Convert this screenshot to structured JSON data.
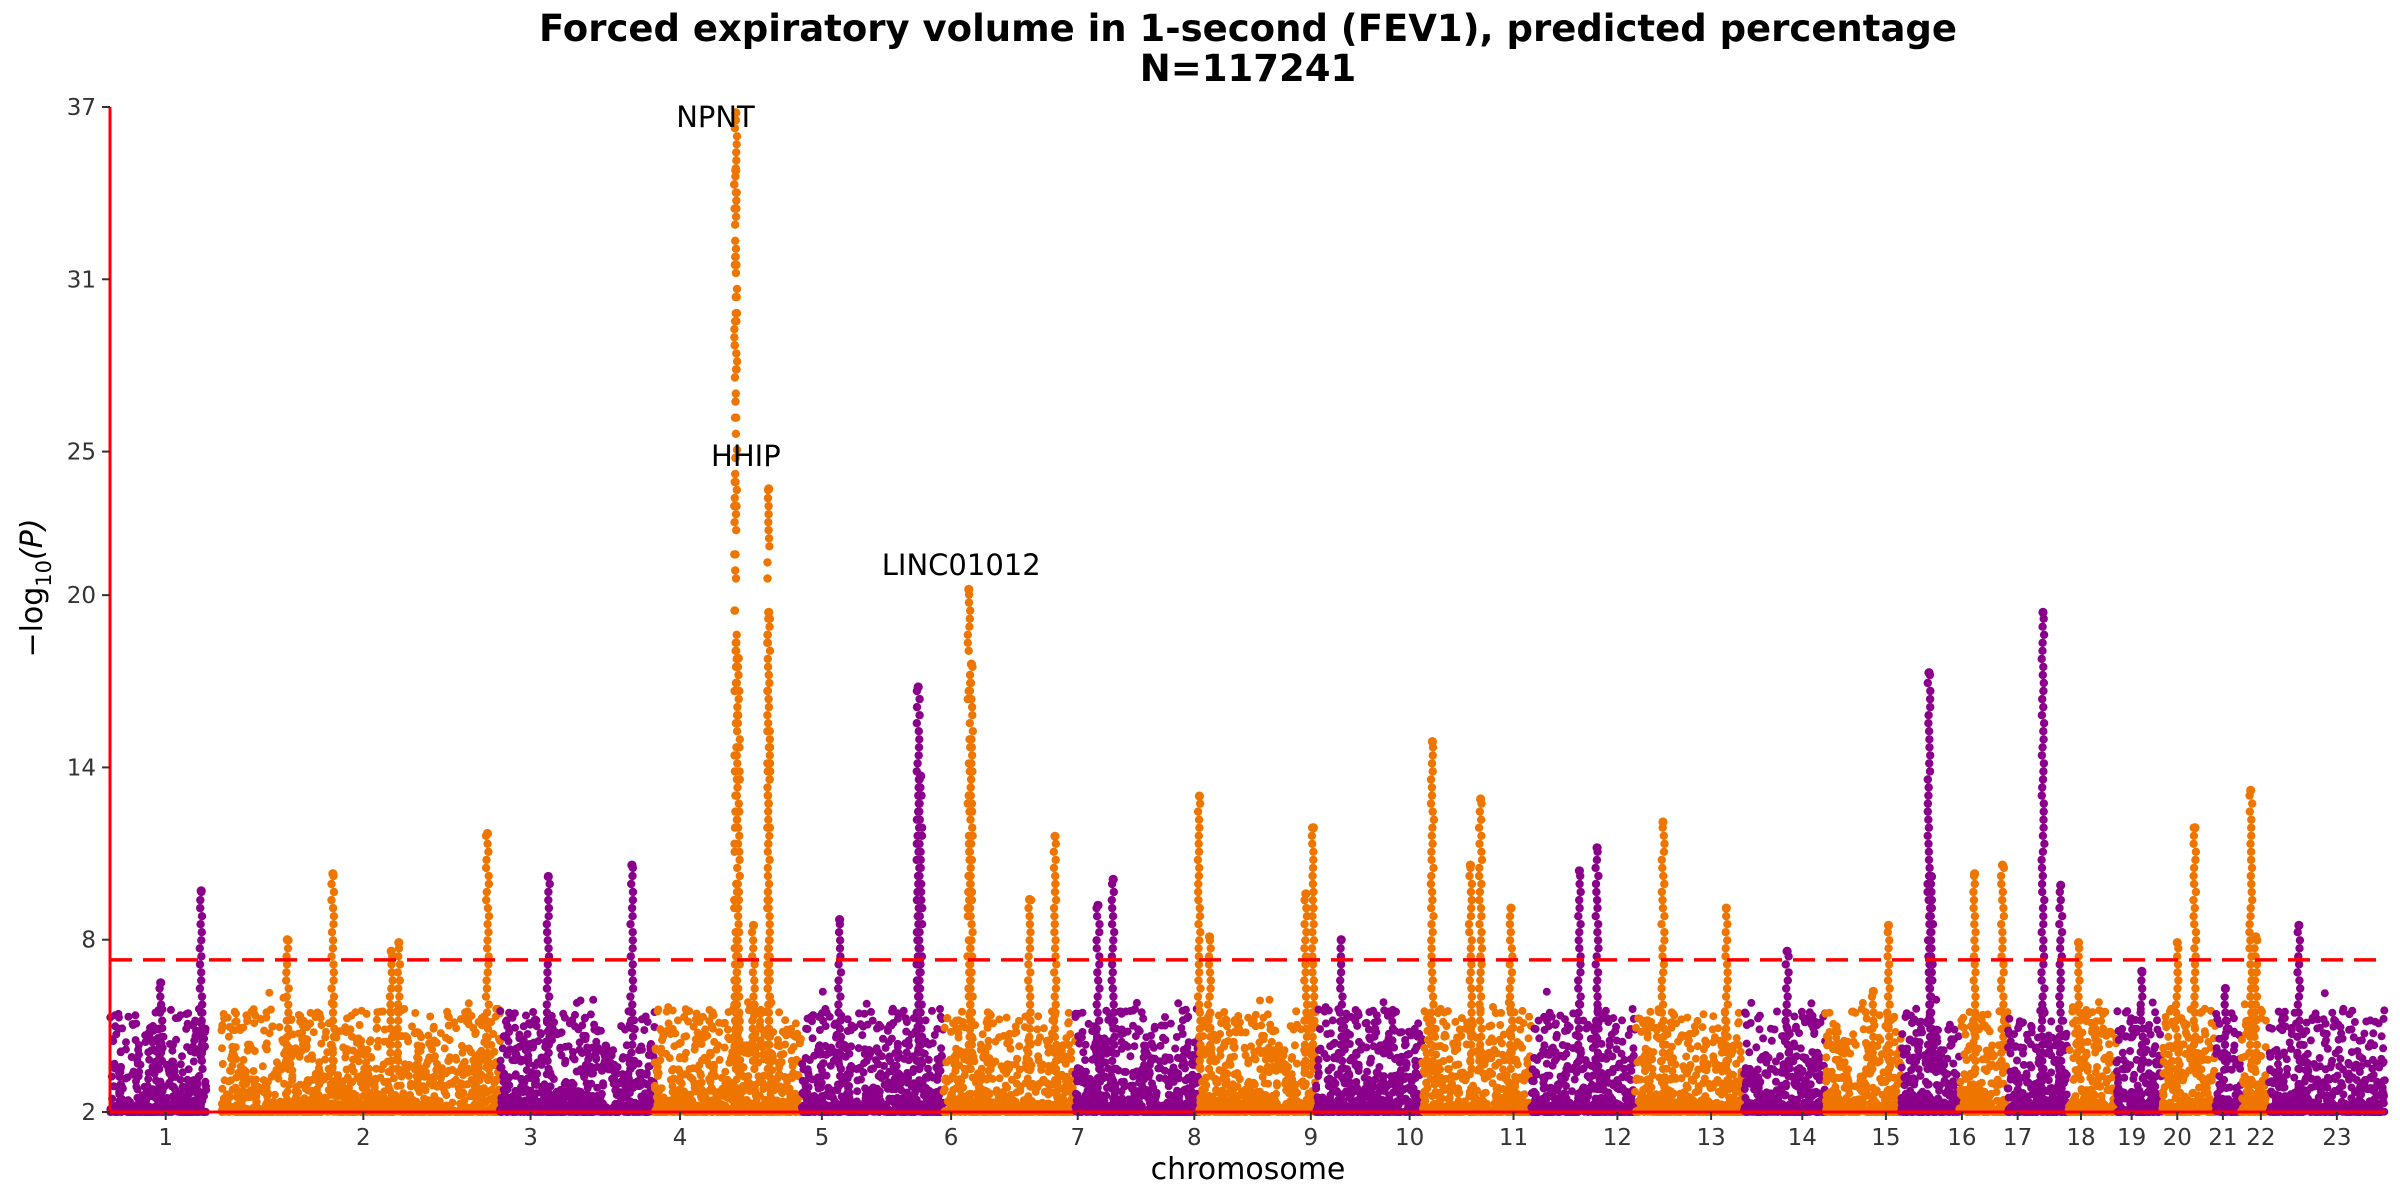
{
  "chart_data": {
    "type": "scatter",
    "subtype": "manhattan",
    "title": "Forced expiratory volume in 1-second (FEV1), predicted percentage",
    "subtitle": "N=117241",
    "xlabel": "chromosome",
    "ylabel": "−log",
    "ylabel_sub": "10",
    "ylabel_tail": "(P)",
    "y_ticks": [
      2,
      8,
      14,
      20,
      25,
      31,
      37
    ],
    "ylim": [
      2,
      37
    ],
    "significance_line": 7.3,
    "colors": {
      "odd": "#8B008B",
      "even": "#EE7600",
      "threshold": "#FF0000",
      "axis": "#FF0000"
    },
    "chromosomes": [
      {
        "name": "1",
        "start": 0.0,
        "end": 1.9,
        "peaks": [
          [
            1.0,
            6.5
          ],
          [
            1.8,
            9.7
          ]
        ]
      },
      {
        "name": "2",
        "start": 2.2,
        "end": 4.05,
        "peaks": [
          [
            1.3,
            8.0
          ],
          [
            3.5,
            7.9
          ]
        ]
      },
      {
        "name": "2",
        "start": 4.05,
        "end": 7.7,
        "peaks": [
          [
            0.35,
            10.3
          ],
          [
            3.4,
            11.7
          ],
          [
            1.5,
            7.6
          ]
        ]
      },
      {
        "name": "3",
        "start": 7.7,
        "end": 10.75,
        "peaks": [
          [
            0.95,
            10.2
          ],
          [
            2.6,
            10.6
          ]
        ]
      },
      {
        "name": "4",
        "start": 10.75,
        "end": 13.65,
        "peaks": [
          [
            1.6,
            36.8
          ],
          [
            1.6,
            34.8
          ],
          [
            1.65,
            17.8
          ],
          [
            2.25,
            23.7
          ],
          [
            2.25,
            19.4
          ],
          [
            1.95,
            8.5
          ]
        ]
      },
      {
        "name": "5",
        "start": 13.65,
        "end": 16.45,
        "peaks": [
          [
            0.75,
            8.7
          ],
          [
            2.3,
            16.8
          ],
          [
            2.35,
            13.7
          ]
        ]
      },
      {
        "name": "6",
        "start": 16.45,
        "end": 19.05,
        "peaks": [
          [
            0.5,
            20.2
          ],
          [
            0.55,
            17.6
          ],
          [
            1.7,
            9.4
          ],
          [
            2.2,
            11.6
          ]
        ]
      },
      {
        "name": "7",
        "start": 19.05,
        "end": 21.5,
        "peaks": [
          [
            0.45,
            9.2
          ],
          [
            0.75,
            10.1
          ]
        ]
      },
      {
        "name": "8",
        "start": 21.5,
        "end": 23.8,
        "peaks": [
          [
            0.0,
            13.0
          ],
          [
            0.2,
            8.1
          ],
          [
            2.1,
            9.6
          ],
          [
            2.25,
            11.9
          ]
        ]
      },
      {
        "name": "9",
        "start": 23.8,
        "end": 25.9,
        "peaks": [
          [
            0.5,
            8.0
          ]
        ]
      },
      {
        "name": "10",
        "start": 25.9,
        "end": 28.05,
        "peaks": [
          [
            0.2,
            14.9
          ],
          [
            1.15,
            12.9
          ],
          [
            0.95,
            10.6
          ],
          [
            1.75,
            9.1
          ]
        ]
      },
      {
        "name": "11",
        "start": 28.05,
        "end": 30.1,
        "peaks": [
          [
            0.95,
            10.4
          ],
          [
            1.3,
            11.2
          ]
        ]
      },
      {
        "name": "12",
        "start": 30.1,
        "end": 32.25,
        "peaks": [
          [
            0.55,
            12.1
          ],
          [
            1.8,
            9.1
          ]
        ]
      },
      {
        "name": "13",
        "start": 32.25,
        "end": 33.85,
        "peaks": [
          [
            0.85,
            7.6
          ]
        ]
      },
      {
        "name": "14",
        "start": 33.85,
        "end": 35.35,
        "peaks": [
          [
            1.25,
            8.5
          ],
          [
            0.95,
            6.2
          ]
        ]
      },
      {
        "name": "15",
        "start": 35.35,
        "end": 36.5,
        "peaks": [
          [
            0.55,
            17.3
          ],
          [
            0.6,
            10.2
          ]
        ]
      },
      {
        "name": "16",
        "start": 36.5,
        "end": 37.45,
        "peaks": [
          [
            0.3,
            10.3
          ],
          [
            0.85,
            10.6
          ]
        ]
      },
      {
        "name": "17",
        "start": 37.45,
        "end": 38.65,
        "peaks": [
          [
            0.7,
            19.4
          ],
          [
            1.05,
            9.9
          ]
        ]
      },
      {
        "name": "18",
        "start": 38.65,
        "end": 39.6,
        "peaks": [
          [
            0.2,
            7.9
          ]
        ]
      },
      {
        "name": "19",
        "start": 39.6,
        "end": 40.5,
        "peaks": [
          [
            0.5,
            6.9
          ]
        ]
      },
      {
        "name": "20",
        "start": 40.5,
        "end": 41.55,
        "peaks": [
          [
            0.65,
            11.9
          ],
          [
            0.3,
            7.9
          ]
        ]
      },
      {
        "name": "21",
        "start": 41.55,
        "end": 42.05,
        "peaks": [
          [
            0.2,
            6.3
          ]
        ]
      },
      {
        "name": "22",
        "start": 42.05,
        "end": 42.6,
        "peaks": [
          [
            0.2,
            13.2
          ],
          [
            0.3,
            8.1
          ]
        ]
      },
      {
        "name": "23",
        "start": 42.6,
        "end": 44.9,
        "peaks": [
          [
            0.6,
            8.5
          ]
        ]
      }
    ],
    "x_ticks": [
      {
        "label": "1",
        "pos": 1.1
      },
      {
        "label": "2",
        "pos": 5.0
      },
      {
        "label": "3",
        "pos": 8.3
      },
      {
        "label": "4",
        "pos": 11.25
      },
      {
        "label": "5",
        "pos": 14.05
      },
      {
        "label": "6",
        "pos": 16.6
      },
      {
        "label": "7",
        "pos": 19.1
      },
      {
        "label": "8",
        "pos": 21.4
      },
      {
        "label": "9",
        "pos": 23.7
      },
      {
        "label": "10",
        "pos": 25.65
      },
      {
        "label": "11",
        "pos": 27.7
      },
      {
        "label": "12",
        "pos": 29.75
      },
      {
        "label": "13",
        "pos": 31.6
      },
      {
        "label": "14",
        "pos": 33.4
      },
      {
        "label": "15",
        "pos": 35.05
      },
      {
        "label": "16",
        "pos": 36.55
      },
      {
        "label": "17",
        "pos": 37.65
      },
      {
        "label": "18",
        "pos": 38.9
      },
      {
        "label": "19",
        "pos": 39.9
      },
      {
        "label": "20",
        "pos": 40.8
      },
      {
        "label": "21",
        "pos": 41.7
      },
      {
        "label": "22",
        "pos": 42.45
      },
      {
        "label": "23",
        "pos": 43.95
      }
    ],
    "annotations": [
      {
        "text": "NPNT",
        "x": 11.95,
        "y": 36.3
      },
      {
        "text": "HHIP",
        "x": 12.55,
        "y": 24.5
      },
      {
        "text": "LINC01012",
        "x": 16.8,
        "y": 20.7
      }
    ]
  }
}
